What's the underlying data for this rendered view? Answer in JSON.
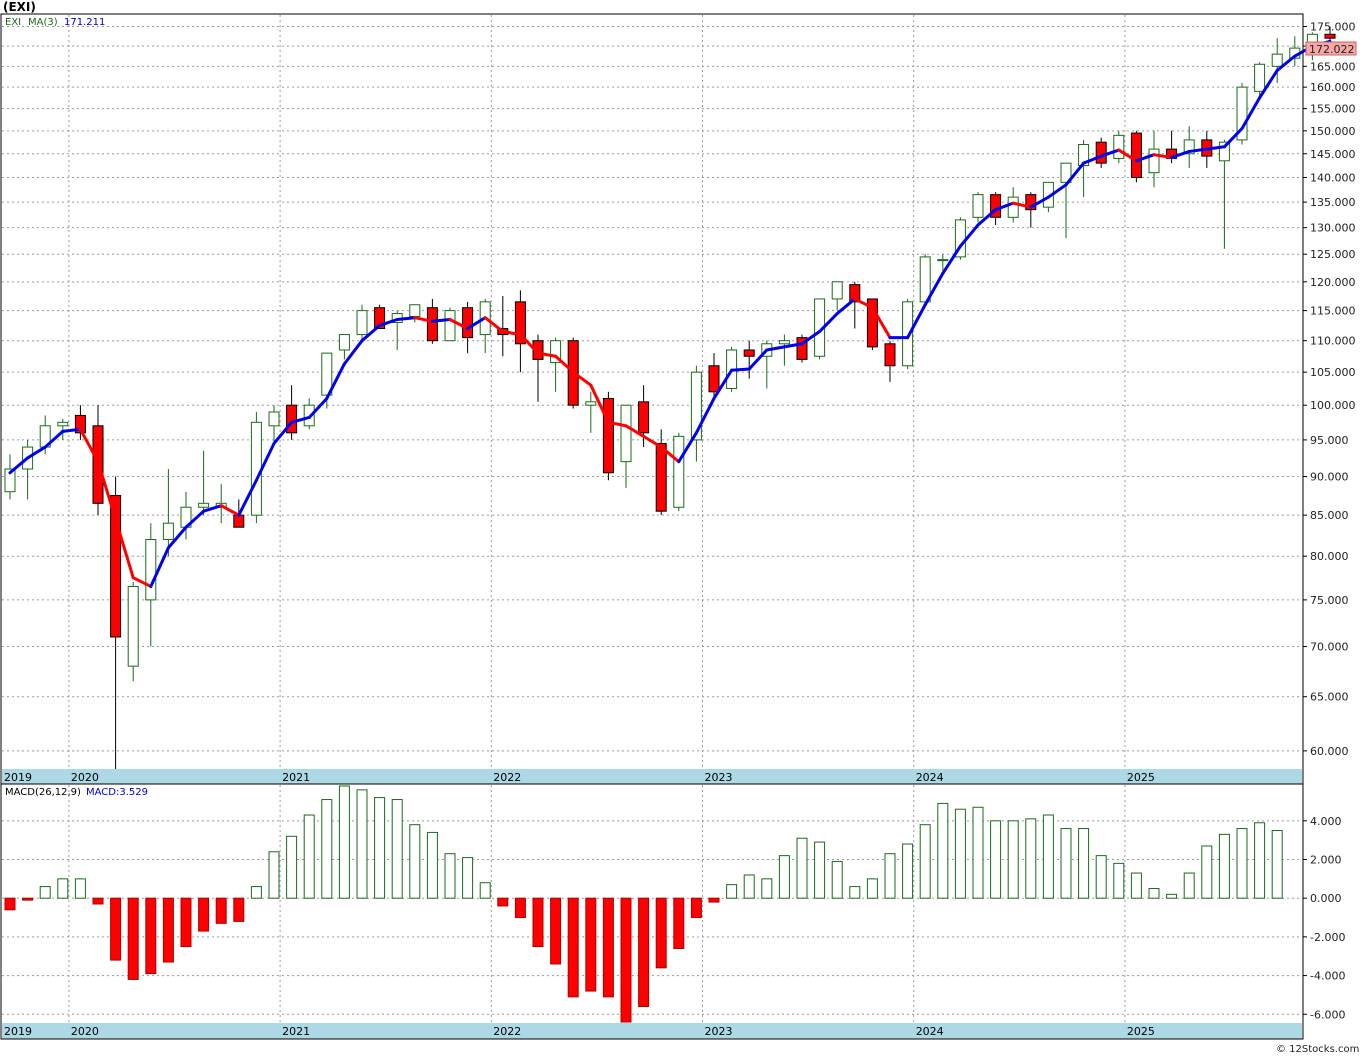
{
  "title": "(EXI)",
  "watermark": "© 12Stocks.com",
  "colors": {
    "up": "#1a6b1a",
    "down": "#ff0000",
    "ma_up": "#0000ee",
    "ma_down": "#ff0000",
    "macd_pos": "#1a6b1a",
    "macd_neg": "#ff0000",
    "axis_band": "#add8e6",
    "last_price_bg": "#f4a8a8"
  },
  "chart_data": [
    {
      "type": "candlestick",
      "frequency": "monthly",
      "legend": {
        "symbol": "EXI",
        "ma_label": "MA(3)",
        "ma_value": "171.211"
      },
      "last_price_label": "172.022",
      "y_scale": "log",
      "ylim": [
        58.5,
        178
      ],
      "yticks": [
        "175.000",
        "170.000",
        "165.000",
        "160.000",
        "155.000",
        "150.000",
        "145.000",
        "140.000",
        "135.000",
        "130.000",
        "125.000",
        "120.000",
        "115.000",
        "110.000",
        "105.000",
        "100.000",
        "95.000",
        "90.000",
        "85.000",
        "80.000",
        "75.000",
        "70.000",
        "65.000",
        "60.000"
      ],
      "x_year_labels": [
        "2019",
        "2020",
        "2021",
        "2022",
        "2023",
        "2024",
        "2025"
      ],
      "x_year_start_index": [
        0,
        4,
        16,
        28,
        40,
        52,
        64
      ],
      "ohlc": [
        [
          88,
          93,
          87,
          91
        ],
        [
          91,
          95,
          87,
          94
        ],
        [
          94,
          98.5,
          93,
          97
        ],
        [
          97,
          98,
          95,
          97.5
        ],
        [
          98.5,
          100,
          95,
          96
        ],
        [
          97,
          100,
          85,
          86.5
        ],
        [
          87.5,
          90,
          58,
          71
        ],
        [
          68,
          77,
          66.5,
          76.5
        ],
        [
          75,
          84,
          70,
          82
        ],
        [
          82,
          91,
          80,
          84
        ],
        [
          83.5,
          88,
          82,
          86
        ],
        [
          86,
          93.5,
          85,
          86.5
        ],
        [
          86,
          89,
          84,
          86.5
        ],
        [
          85,
          87,
          83.5,
          83.5
        ],
        [
          85,
          99,
          84,
          97.5
        ],
        [
          97,
          100,
          94.5,
          99
        ],
        [
          100,
          103,
          95,
          96
        ],
        [
          97,
          101,
          96.5,
          100
        ],
        [
          101.5,
          108,
          99.5,
          108
        ],
        [
          108.5,
          111,
          107,
          111
        ],
        [
          111,
          116,
          110,
          115
        ],
        [
          115.5,
          116,
          112,
          112
        ],
        [
          113,
          115,
          108.5,
          114.5
        ],
        [
          114,
          116,
          113,
          116
        ],
        [
          115.5,
          117,
          109.5,
          110
        ],
        [
          110,
          115.5,
          110,
          115
        ],
        [
          115.5,
          116.5,
          108,
          110.5
        ],
        [
          111,
          117,
          108,
          116.5
        ],
        [
          112,
          117.5,
          107.5,
          111
        ],
        [
          116.5,
          118.5,
          105,
          109.5
        ],
        [
          110,
          111,
          100.5,
          107
        ],
        [
          106.5,
          110.5,
          102,
          110
        ],
        [
          110,
          110.5,
          99.5,
          100
        ],
        [
          100,
          102,
          96,
          100.5
        ],
        [
          101,
          102,
          89.5,
          90.5
        ],
        [
          92,
          100,
          88.5,
          100
        ],
        [
          100.5,
          103,
          94,
          96
        ],
        [
          94.5,
          96.5,
          85,
          85.5
        ],
        [
          86,
          96,
          85.5,
          95.5
        ],
        [
          95,
          106,
          92,
          105
        ],
        [
          106,
          108,
          101,
          102
        ],
        [
          102.5,
          109,
          102,
          108.5
        ],
        [
          108.5,
          110,
          104,
          107.5
        ],
        [
          107.5,
          110,
          102.5,
          109.5
        ],
        [
          109.5,
          111,
          106,
          110
        ],
        [
          110.5,
          111,
          106.5,
          107
        ],
        [
          107.5,
          117,
          107,
          117
        ],
        [
          117,
          120,
          115,
          120
        ],
        [
          119.5,
          120,
          112,
          116.5
        ],
        [
          117,
          117,
          108.5,
          109
        ],
        [
          109.5,
          110,
          103.5,
          106
        ],
        [
          106,
          117,
          105.5,
          116.5
        ],
        [
          116.5,
          125,
          116,
          124.5
        ],
        [
          124,
          125,
          122,
          124
        ],
        [
          124.5,
          132,
          124,
          131.5
        ],
        [
          132,
          137,
          131,
          136.5
        ],
        [
          136.5,
          137,
          130.5,
          132
        ],
        [
          132,
          138,
          131,
          136
        ],
        [
          136.5,
          137,
          130,
          133.5
        ],
        [
          134,
          139,
          133,
          139
        ],
        [
          139,
          143,
          128,
          143
        ],
        [
          142.5,
          148,
          136,
          147
        ],
        [
          147.5,
          148.5,
          142,
          143
        ],
        [
          144,
          150,
          143,
          149
        ],
        [
          149.5,
          150,
          139,
          140
        ],
        [
          141,
          150,
          138,
          146
        ],
        [
          146,
          150,
          143,
          144
        ],
        [
          145,
          151,
          142,
          148
        ],
        [
          148,
          150,
          142,
          144.5
        ],
        [
          143.5,
          148,
          126,
          147.5
        ],
        [
          148,
          161,
          147,
          160
        ],
        [
          159,
          166,
          158,
          165.5
        ],
        [
          165,
          172,
          161,
          168
        ],
        [
          167,
          172.5,
          165,
          169.5
        ],
        [
          168,
          173.5,
          166.5,
          173
        ],
        [
          173,
          175,
          170,
          172
        ]
      ],
      "ma3": [
        90.5,
        92.5,
        94.0,
        96.2,
        96.5,
        92.0,
        84.5,
        77.5,
        76.5,
        81.0,
        83.5,
        85.5,
        86.2,
        85.0,
        89.5,
        94.5,
        97.5,
        98.2,
        101.0,
        106.3,
        110.0,
        112.5,
        113.5,
        113.8,
        113.2,
        113.5,
        112.0,
        113.8,
        111.5,
        111.0,
        108.0,
        107.5,
        105.0,
        103.0,
        97.5,
        97.0,
        95.5,
        94.0,
        92.0,
        96.0,
        101.0,
        105.3,
        105.5,
        108.5,
        109.0,
        109.5,
        111.5,
        114.5,
        117.0,
        115.5,
        110.5,
        110.5,
        116.0,
        121.5,
        126.5,
        130.5,
        133.5,
        134.8,
        134.0,
        136.0,
        138.5,
        143.0,
        144.5,
        145.8,
        143.5,
        144.8,
        144.2,
        145.5,
        146.0,
        146.5,
        150.5,
        157.5,
        164.0,
        167.5,
        170.0,
        171.2
      ]
    },
    {
      "type": "bar",
      "indicator": "MACD",
      "legend": {
        "label": "MACD(26,12,9)",
        "value": "MACD:3.529"
      },
      "ylim": [
        -6.4,
        5.8
      ],
      "yticks": [
        "4.000",
        "2.000",
        "0.000",
        "-2.000",
        "-4.000",
        "-6.000"
      ],
      "x_year_labels": [
        "2019",
        "2020",
        "2021",
        "2022",
        "2023",
        "2024",
        "2025"
      ],
      "values": [
        -0.6,
        -0.1,
        0.6,
        1.0,
        1.0,
        -0.3,
        -3.2,
        -4.2,
        -3.9,
        -3.3,
        -2.5,
        -1.7,
        -1.3,
        -1.2,
        0.6,
        2.4,
        3.2,
        4.3,
        5.1,
        5.8,
        5.6,
        5.2,
        5.1,
        3.8,
        3.4,
        2.3,
        2.1,
        0.8,
        -0.4,
        -1.0,
        -2.5,
        -3.4,
        -5.1,
        -4.8,
        -5.1,
        -6.4,
        -5.6,
        -3.6,
        -2.6,
        -1.0,
        -0.2,
        0.7,
        1.2,
        1.0,
        2.2,
        3.1,
        2.9,
        1.9,
        0.6,
        1.0,
        2.3,
        2.8,
        3.8,
        4.9,
        4.6,
        4.7,
        4.0,
        4.0,
        4.1,
        4.3,
        3.6,
        3.6,
        2.2,
        1.8,
        1.3,
        0.5,
        0.2,
        1.3,
        2.7,
        3.3,
        3.6,
        3.9,
        3.5
      ]
    }
  ]
}
